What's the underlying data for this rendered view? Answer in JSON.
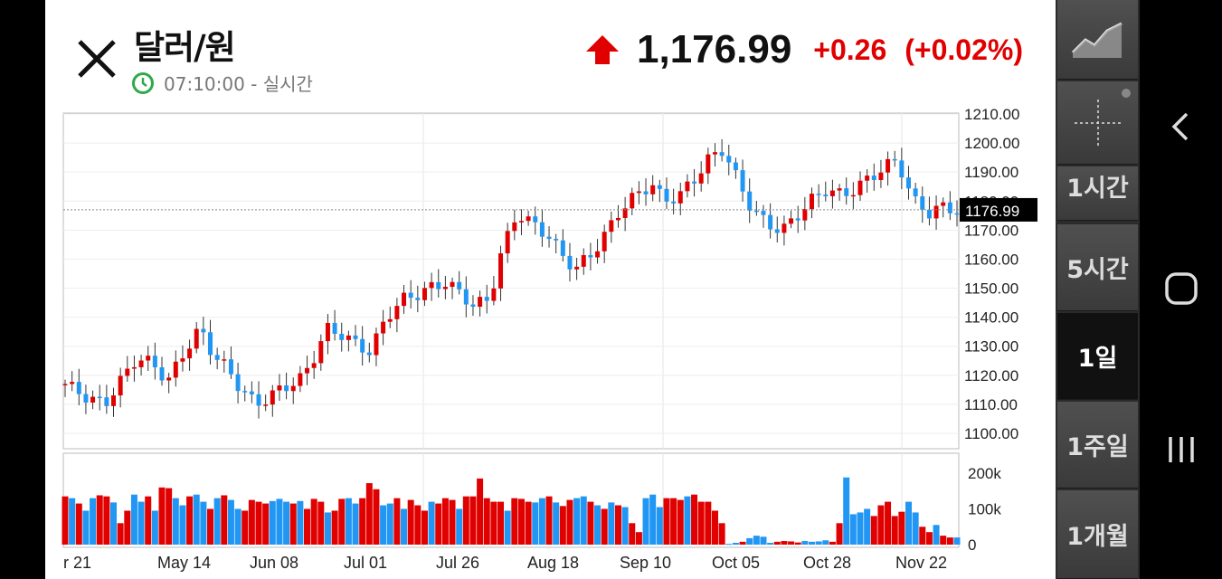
{
  "header": {
    "title": "달러/원",
    "time": "07:10:00 - 실시간",
    "price": "1,176.99",
    "change": "+0.26",
    "change_pct": "(+0.02%)",
    "up_color": "#e00000"
  },
  "chart_data": {
    "type": "candlestick",
    "y_ticks": [
      "1210.00",
      "1200.00",
      "1190.00",
      "1180.00",
      "1170.00",
      "1160.00",
      "1150.00",
      "1140.00",
      "1130.00",
      "1120.00",
      "1110.00",
      "1100.00"
    ],
    "ylim": [
      1100,
      1210
    ],
    "current_price_label": "1176.99",
    "current_price": 1176.99,
    "volume_ticks": [
      "200k",
      "100k",
      "0"
    ],
    "volume_ylim": [
      0,
      200000
    ],
    "x_labels": [
      "r 21",
      "May 14",
      "Jun 08",
      "Jul 01",
      "Jul 26",
      "Aug 18",
      "Sep 10",
      "Oct 05",
      "Oct 28",
      "Nov 22"
    ],
    "up_color": "#e00000",
    "down_color": "#2196f3",
    "close_trend": [
      [
        0,
        1117
      ],
      [
        6,
        1112
      ],
      [
        10,
        1110
      ],
      [
        14,
        1118
      ],
      [
        18,
        1126
      ],
      [
        22,
        1124
      ],
      [
        26,
        1118
      ],
      [
        30,
        1128
      ],
      [
        34,
        1136
      ],
      [
        37,
        1128
      ],
      [
        41,
        1122
      ],
      [
        44,
        1116
      ],
      [
        48,
        1110
      ],
      [
        51,
        1112
      ],
      [
        55,
        1116
      ],
      [
        59,
        1118
      ],
      [
        62,
        1124
      ],
      [
        66,
        1136
      ],
      [
        70,
        1134
      ],
      [
        73,
        1131
      ],
      [
        77,
        1128
      ],
      [
        81,
        1140
      ],
      [
        85,
        1146
      ],
      [
        89,
        1148
      ],
      [
        92,
        1150
      ],
      [
        96,
        1152
      ],
      [
        100,
        1148
      ],
      [
        103,
        1144
      ],
      [
        107,
        1146
      ],
      [
        110,
        1162
      ],
      [
        114,
        1176
      ],
      [
        118,
        1172
      ],
      [
        122,
        1168
      ],
      [
        126,
        1160
      ],
      [
        129,
        1157
      ],
      [
        133,
        1162
      ],
      [
        137,
        1170
      ],
      [
        140,
        1177
      ],
      [
        144,
        1182
      ],
      [
        148,
        1186
      ],
      [
        151,
        1180
      ],
      [
        155,
        1182
      ],
      [
        159,
        1188
      ],
      [
        162,
        1194
      ],
      [
        166,
        1198
      ],
      [
        170,
        1186
      ],
      [
        173,
        1178
      ],
      [
        177,
        1172
      ],
      [
        181,
        1170
      ],
      [
        184,
        1174
      ],
      [
        188,
        1180
      ],
      [
        192,
        1184
      ],
      [
        196,
        1182
      ],
      [
        199,
        1184
      ],
      [
        203,
        1188
      ],
      [
        207,
        1192
      ],
      [
        210,
        1194
      ],
      [
        214,
        1180
      ],
      [
        218,
        1176
      ],
      [
        221,
        1178
      ],
      [
        225,
        1176.99
      ]
    ],
    "volumes": [
      [
        0,
        135000,
        1
      ],
      [
        1,
        130000,
        0
      ],
      [
        2,
        115000,
        1
      ],
      [
        3,
        95000,
        0
      ],
      [
        4,
        130000,
        0
      ],
      [
        5,
        138000,
        1
      ],
      [
        6,
        135000,
        1
      ],
      [
        7,
        118000,
        0
      ],
      [
        8,
        60000,
        1
      ],
      [
        9,
        95000,
        1
      ],
      [
        10,
        140000,
        0
      ],
      [
        11,
        120000,
        0
      ],
      [
        12,
        135000,
        1
      ],
      [
        13,
        95000,
        0
      ],
      [
        14,
        160000,
        1
      ],
      [
        15,
        158000,
        1
      ],
      [
        16,
        130000,
        0
      ],
      [
        17,
        110000,
        0
      ],
      [
        18,
        135000,
        1
      ],
      [
        19,
        140000,
        0
      ],
      [
        20,
        120000,
        0
      ],
      [
        21,
        100000,
        1
      ],
      [
        22,
        130000,
        0
      ],
      [
        23,
        138000,
        1
      ],
      [
        24,
        125000,
        0
      ],
      [
        25,
        100000,
        0
      ],
      [
        26,
        95000,
        1
      ],
      [
        27,
        125000,
        1
      ],
      [
        28,
        120000,
        1
      ],
      [
        29,
        115000,
        1
      ],
      [
        30,
        122000,
        0
      ],
      [
        31,
        128000,
        0
      ],
      [
        32,
        120000,
        0
      ],
      [
        33,
        115000,
        1
      ],
      [
        34,
        122000,
        0
      ],
      [
        35,
        100000,
        1
      ],
      [
        36,
        128000,
        1
      ],
      [
        37,
        120000,
        1
      ],
      [
        38,
        90000,
        0
      ],
      [
        39,
        95000,
        1
      ],
      [
        40,
        128000,
        1
      ],
      [
        41,
        130000,
        0
      ],
      [
        42,
        115000,
        0
      ],
      [
        43,
        130000,
        1
      ],
      [
        44,
        172000,
        1
      ],
      [
        45,
        155000,
        1
      ],
      [
        46,
        110000,
        0
      ],
      [
        47,
        115000,
        0
      ],
      [
        48,
        130000,
        1
      ],
      [
        49,
        100000,
        0
      ],
      [
        50,
        125000,
        1
      ],
      [
        51,
        110000,
        1
      ],
      [
        52,
        95000,
        1
      ],
      [
        53,
        120000,
        0
      ],
      [
        54,
        115000,
        1
      ],
      [
        55,
        130000,
        1
      ],
      [
        56,
        125000,
        1
      ],
      [
        57,
        100000,
        0
      ],
      [
        58,
        135000,
        1
      ],
      [
        59,
        135000,
        1
      ],
      [
        60,
        185000,
        1
      ],
      [
        61,
        130000,
        1
      ],
      [
        62,
        120000,
        1
      ],
      [
        63,
        120000,
        1
      ],
      [
        64,
        95000,
        0
      ],
      [
        65,
        130000,
        1
      ],
      [
        66,
        128000,
        1
      ],
      [
        67,
        120000,
        1
      ],
      [
        68,
        118000,
        0
      ],
      [
        69,
        130000,
        0
      ],
      [
        70,
        135000,
        1
      ],
      [
        71,
        118000,
        0
      ],
      [
        72,
        108000,
        1
      ],
      [
        73,
        125000,
        1
      ],
      [
        74,
        130000,
        0
      ],
      [
        75,
        135000,
        0
      ],
      [
        76,
        120000,
        1
      ],
      [
        77,
        110000,
        0
      ],
      [
        78,
        100000,
        1
      ],
      [
        79,
        118000,
        0
      ],
      [
        80,
        110000,
        1
      ],
      [
        81,
        105000,
        0
      ],
      [
        82,
        60000,
        1
      ],
      [
        83,
        35000,
        1
      ],
      [
        84,
        130000,
        0
      ],
      [
        85,
        140000,
        0
      ],
      [
        86,
        105000,
        0
      ],
      [
        87,
        130000,
        1
      ],
      [
        88,
        130000,
        1
      ],
      [
        89,
        125000,
        1
      ],
      [
        90,
        135000,
        0
      ],
      [
        91,
        140000,
        1
      ],
      [
        92,
        120000,
        1
      ],
      [
        93,
        120000,
        1
      ],
      [
        94,
        95000,
        1
      ],
      [
        95,
        60000,
        1
      ],
      [
        96,
        2000,
        0
      ],
      [
        97,
        5000,
        0
      ],
      [
        98,
        8000,
        1
      ],
      [
        99,
        18000,
        0
      ],
      [
        100,
        25000,
        0
      ],
      [
        101,
        22000,
        0
      ],
      [
        102,
        5000,
        0
      ],
      [
        103,
        8000,
        1
      ],
      [
        104,
        10000,
        1
      ],
      [
        105,
        9000,
        1
      ],
      [
        106,
        6000,
        1
      ],
      [
        107,
        10000,
        0
      ],
      [
        108,
        8000,
        0
      ],
      [
        109,
        9000,
        0
      ],
      [
        110,
        12000,
        0
      ],
      [
        111,
        8000,
        1
      ],
      [
        112,
        60000,
        1
      ],
      [
        113,
        188000,
        0
      ],
      [
        114,
        85000,
        0
      ],
      [
        115,
        90000,
        0
      ],
      [
        116,
        100000,
        0
      ],
      [
        117,
        80000,
        1
      ],
      [
        118,
        110000,
        1
      ],
      [
        119,
        120000,
        1
      ],
      [
        120,
        80000,
        1
      ],
      [
        121,
        92000,
        1
      ],
      [
        122,
        120000,
        0
      ],
      [
        123,
        90000,
        0
      ],
      [
        124,
        50000,
        1
      ],
      [
        125,
        35000,
        1
      ],
      [
        126,
        55000,
        0
      ],
      [
        127,
        25000,
        1
      ],
      [
        128,
        20000,
        1
      ],
      [
        129,
        20000,
        0
      ]
    ]
  },
  "sidebar": {
    "items": [
      {
        "label": ""
      },
      {
        "label": ""
      },
      {
        "label": "1시간"
      },
      {
        "label": "5시간"
      },
      {
        "label": "1일"
      },
      {
        "label": "1주일"
      },
      {
        "label": "1개월"
      }
    ]
  },
  "nav": {
    "back": "back-icon",
    "home": "home-icon",
    "recents": "recents-icon"
  }
}
